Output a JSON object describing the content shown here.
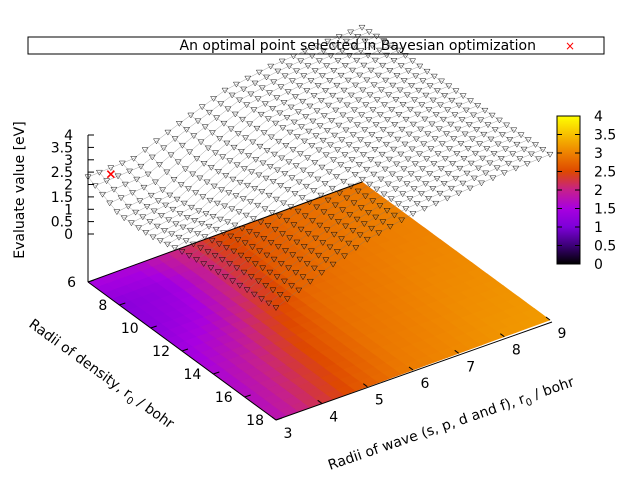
{
  "chart_data": {
    "type": "surface3d",
    "title": "",
    "legend": {
      "label": "An optimal point selected in Bayesian optimization",
      "marker": "×",
      "marker_color": "#ff0000",
      "placement": "top"
    },
    "x_axis": {
      "label": "Radii of wave (s, p, d and f), r0 / bohr",
      "label_main": "Radii of wave (s, p, d and f), r",
      "label_sub": "0",
      "label_tail": " / bohr",
      "range": [
        3,
        9
      ],
      "ticks": [
        "3",
        "4",
        "5",
        "6",
        "7",
        "8",
        "9"
      ]
    },
    "y_axis": {
      "label": "Radii of density, r0 / bohr",
      "label_main": "Radii of density, r",
      "label_sub": "0",
      "label_tail": " / bohr",
      "range": [
        6,
        18
      ],
      "ticks": [
        "6",
        "8",
        "10",
        "12",
        "14",
        "16",
        "18"
      ]
    },
    "z_axis": {
      "label": "Evaluate value [eV]",
      "range": [
        0,
        4
      ],
      "ticks": [
        "0",
        "0.5",
        "1",
        "1.5",
        "2",
        "2.5",
        "3",
        "3.5",
        "4"
      ]
    },
    "colorbar": {
      "range": [
        0,
        4
      ],
      "ticks": [
        "0",
        "0.5",
        "1",
        "1.5",
        "2",
        "2.5",
        "3",
        "3.5",
        "4"
      ],
      "palette": [
        "#000000",
        "#3c0078",
        "#7d00d9",
        "#a800e0",
        "#c6208b",
        "#de4800",
        "#ee8200",
        "#f7c000",
        "#ffff00"
      ]
    },
    "surface_grid": {
      "x": [
        3,
        4,
        5,
        6,
        7,
        8,
        9
      ],
      "y": [
        6,
        8,
        10,
        12,
        14,
        16,
        18
      ],
      "z": [
        [
          1.55,
          1.6,
          2.1,
          2.55,
          2.75,
          2.85,
          2.9
        ],
        [
          1.15,
          1.3,
          2.0,
          2.6,
          2.8,
          2.9,
          3.0
        ],
        [
          1.2,
          1.45,
          2.15,
          2.7,
          2.85,
          2.95,
          3.0
        ],
        [
          1.4,
          1.75,
          2.4,
          2.8,
          2.9,
          3.0,
          3.05
        ],
        [
          1.55,
          2.0,
          2.55,
          2.85,
          2.95,
          3.05,
          3.1
        ],
        [
          1.65,
          2.15,
          2.6,
          2.9,
          3.0,
          3.1,
          3.15
        ],
        [
          1.75,
          2.25,
          2.7,
          2.95,
          3.05,
          3.15,
          3.2
        ]
      ]
    },
    "optimal_point": {
      "x": 3.5,
      "y": 6.0,
      "z": 1.4
    }
  }
}
